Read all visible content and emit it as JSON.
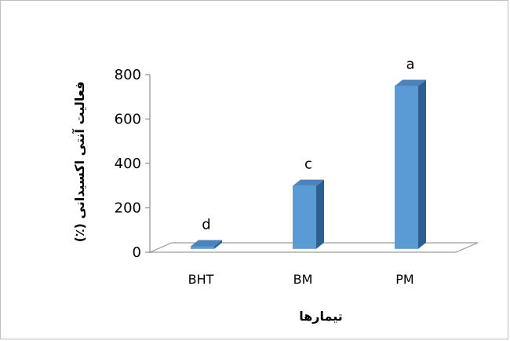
{
  "chart_data": {
    "type": "bar",
    "categories": [
      "BHT",
      "BM",
      "PM"
    ],
    "values": [
      18,
      290,
      740
    ],
    "significance_letters": [
      "d",
      "c",
      "a"
    ],
    "ylabel": "فعالیت آنتی اکسیدانی (٪)",
    "xlabel": "تیمارها",
    "ylim": [
      0,
      800
    ],
    "yticks": [
      0,
      200,
      400,
      600,
      800
    ],
    "grid": false,
    "legend": "none",
    "style": "3d-column",
    "colors": {
      "front": "#5b9bd5",
      "top": "#4a83bd",
      "side": "#2f5f8f",
      "floor_stroke": "#9a9a9a"
    }
  }
}
